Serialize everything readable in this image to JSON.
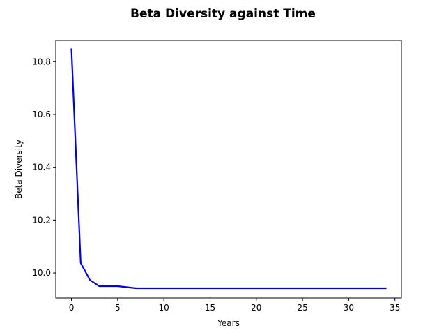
{
  "colors": {
    "series": "#0000e6",
    "axes": "#000000",
    "background": "#ffffff"
  },
  "chart_data": {
    "type": "line",
    "title": "Beta Diversity against Time",
    "xlabel": "Years",
    "ylabel": "Beta Diversity",
    "xlim": [
      -1.7,
      35.7
    ],
    "ylim": [
      9.905,
      10.88
    ],
    "xticks": [
      0,
      5,
      10,
      15,
      20,
      25,
      30,
      35
    ],
    "xtick_labels": [
      "0",
      "5",
      "10",
      "15",
      "20",
      "25",
      "30",
      "35"
    ],
    "yticks": [
      10.0,
      10.2,
      10.4,
      10.6,
      10.8
    ],
    "ytick_labels": [
      "10.0",
      "10.2",
      "10.4",
      "10.6",
      "10.8"
    ],
    "grid": false,
    "series": [
      {
        "x": [
          0,
          1,
          2,
          3,
          4,
          5,
          6,
          7,
          8,
          9,
          10,
          11,
          12,
          13,
          14,
          15,
          16,
          17,
          18,
          19,
          20,
          21,
          22,
          23,
          24,
          25,
          26,
          27,
          28,
          29,
          30,
          31,
          32,
          33,
          34
        ],
        "y": [
          10.847,
          10.038,
          9.973,
          9.95,
          9.95,
          9.95,
          9.946,
          9.942,
          9.942,
          9.942,
          9.942,
          9.942,
          9.942,
          9.942,
          9.942,
          9.942,
          9.942,
          9.942,
          9.942,
          9.942,
          9.942,
          9.942,
          9.942,
          9.942,
          9.942,
          9.942,
          9.942,
          9.942,
          9.942,
          9.942,
          9.942,
          9.942,
          9.942,
          9.942,
          9.942
        ]
      }
    ]
  }
}
